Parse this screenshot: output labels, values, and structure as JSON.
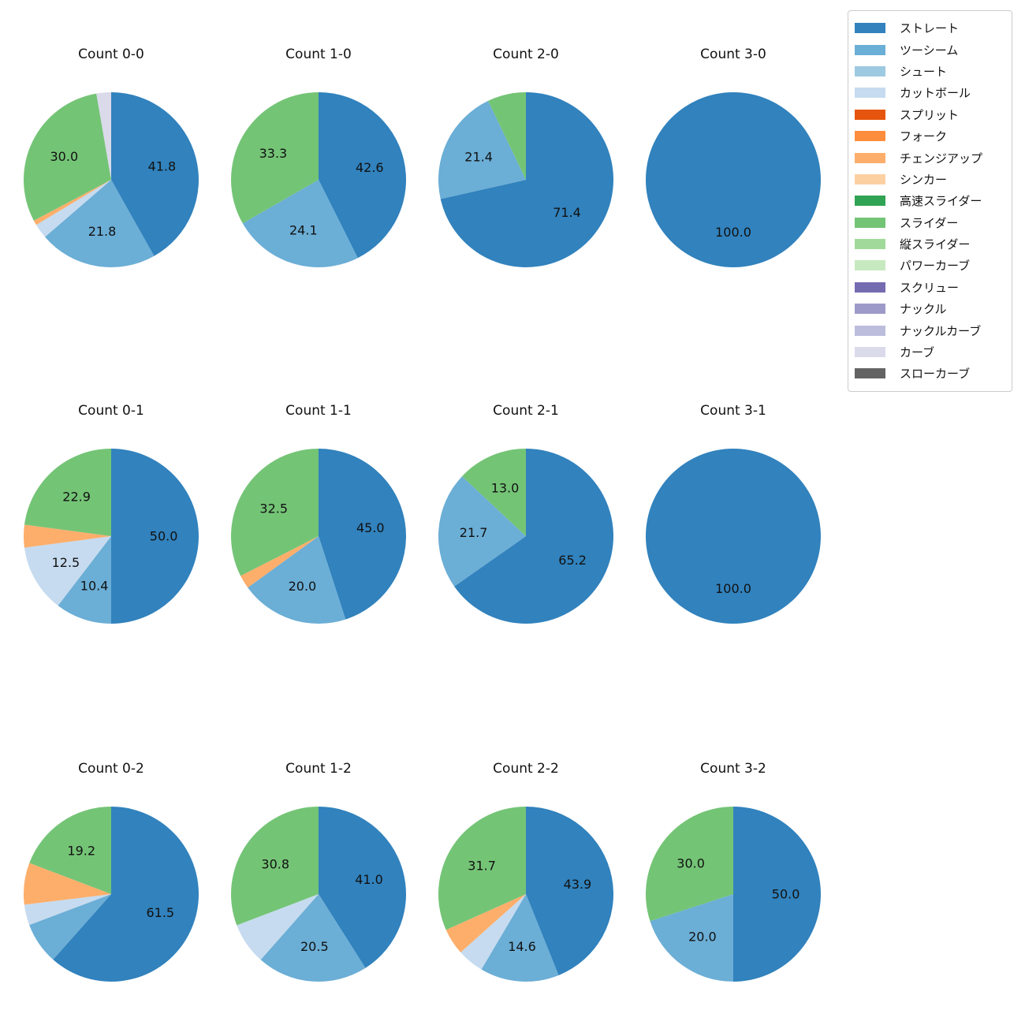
{
  "figure": {
    "background_color": "#ffffff",
    "text_color": "#111111"
  },
  "chart_data": {
    "type": "pie",
    "direction": "clockwise",
    "start_angle_deg": 90,
    "label_format": "one_decimal_percent_value",
    "label_min_value": 10,
    "pct_label_distance": 0.6,
    "grid": {
      "rows": 3,
      "cols": 4
    },
    "legend": {
      "position": "upper right",
      "entries": [
        {
          "label": "ストレート",
          "color": "#3182bd"
        },
        {
          "label": "ツーシーム",
          "color": "#6baed6"
        },
        {
          "label": "シュート",
          "color": "#9ecae1"
        },
        {
          "label": "カットボール",
          "color": "#c6dbef"
        },
        {
          "label": "スプリット",
          "color": "#e6550d"
        },
        {
          "label": "フォーク",
          "color": "#fd8d3c"
        },
        {
          "label": "チェンジアップ",
          "color": "#fdae6b"
        },
        {
          "label": "シンカー",
          "color": "#fdd0a2"
        },
        {
          "label": "高速スライダー",
          "color": "#31a354"
        },
        {
          "label": "スライダー",
          "color": "#74c476"
        },
        {
          "label": "縦スライダー",
          "color": "#a1d99b"
        },
        {
          "label": "パワーカーブ",
          "color": "#c7e9c0"
        },
        {
          "label": "スクリュー",
          "color": "#756bb1"
        },
        {
          "label": "ナックル",
          "color": "#9e9ac8"
        },
        {
          "label": "ナックルカーブ",
          "color": "#bcbddc"
        },
        {
          "label": "カーブ",
          "color": "#dadaeb"
        },
        {
          "label": "スローカーブ",
          "color": "#636363"
        }
      ]
    },
    "pies": [
      {
        "title": "Count 0-0",
        "slices": [
          {
            "label": "ストレート",
            "value": 41.8
          },
          {
            "label": "ツーシーム",
            "value": 21.8
          },
          {
            "label": "カットボール",
            "value": 2.7
          },
          {
            "label": "チェンジアップ",
            "value": 0.9
          },
          {
            "label": "スライダー",
            "value": 30.0
          },
          {
            "label": "カーブ",
            "value": 2.7
          }
        ]
      },
      {
        "title": "Count 1-0",
        "slices": [
          {
            "label": "ストレート",
            "value": 42.6
          },
          {
            "label": "ツーシーム",
            "value": 24.1
          },
          {
            "label": "スライダー",
            "value": 33.3
          }
        ]
      },
      {
        "title": "Count 2-0",
        "slices": [
          {
            "label": "ストレート",
            "value": 71.4
          },
          {
            "label": "ツーシーム",
            "value": 21.4
          },
          {
            "label": "スライダー",
            "value": 7.1
          }
        ]
      },
      {
        "title": "Count 3-0",
        "slices": [
          {
            "label": "ストレート",
            "value": 100.0
          }
        ]
      },
      {
        "title": "Count 0-1",
        "slices": [
          {
            "label": "ストレート",
            "value": 50.0
          },
          {
            "label": "ツーシーム",
            "value": 10.4
          },
          {
            "label": "カットボール",
            "value": 12.5
          },
          {
            "label": "チェンジアップ",
            "value": 4.2
          },
          {
            "label": "スライダー",
            "value": 22.9
          }
        ]
      },
      {
        "title": "Count 1-1",
        "slices": [
          {
            "label": "ストレート",
            "value": 45.0
          },
          {
            "label": "ツーシーム",
            "value": 20.0
          },
          {
            "label": "チェンジアップ",
            "value": 2.5
          },
          {
            "label": "スライダー",
            "value": 32.5
          }
        ]
      },
      {
        "title": "Count 2-1",
        "slices": [
          {
            "label": "ストレート",
            "value": 65.2
          },
          {
            "label": "ツーシーム",
            "value": 21.7
          },
          {
            "label": "スライダー",
            "value": 13.0
          }
        ]
      },
      {
        "title": "Count 3-1",
        "slices": [
          {
            "label": "ストレート",
            "value": 100.0
          }
        ]
      },
      {
        "title": "Count 0-2",
        "slices": [
          {
            "label": "ストレート",
            "value": 61.5
          },
          {
            "label": "ツーシーム",
            "value": 7.7
          },
          {
            "label": "カットボール",
            "value": 3.8
          },
          {
            "label": "チェンジアップ",
            "value": 7.7
          },
          {
            "label": "スライダー",
            "value": 19.2
          }
        ]
      },
      {
        "title": "Count 1-2",
        "slices": [
          {
            "label": "ストレート",
            "value": 41.0
          },
          {
            "label": "ツーシーム",
            "value": 20.5
          },
          {
            "label": "カットボール",
            "value": 7.7
          },
          {
            "label": "スライダー",
            "value": 30.8
          }
        ]
      },
      {
        "title": "Count 2-2",
        "slices": [
          {
            "label": "ストレート",
            "value": 43.9
          },
          {
            "label": "ツーシーム",
            "value": 14.6
          },
          {
            "label": "カットボール",
            "value": 4.9
          },
          {
            "label": "チェンジアップ",
            "value": 4.9
          },
          {
            "label": "スライダー",
            "value": 31.7
          }
        ]
      },
      {
        "title": "Count 3-2",
        "slices": [
          {
            "label": "ストレート",
            "value": 50.0
          },
          {
            "label": "ツーシーム",
            "value": 20.0
          },
          {
            "label": "スライダー",
            "value": 30.0
          }
        ]
      }
    ]
  }
}
